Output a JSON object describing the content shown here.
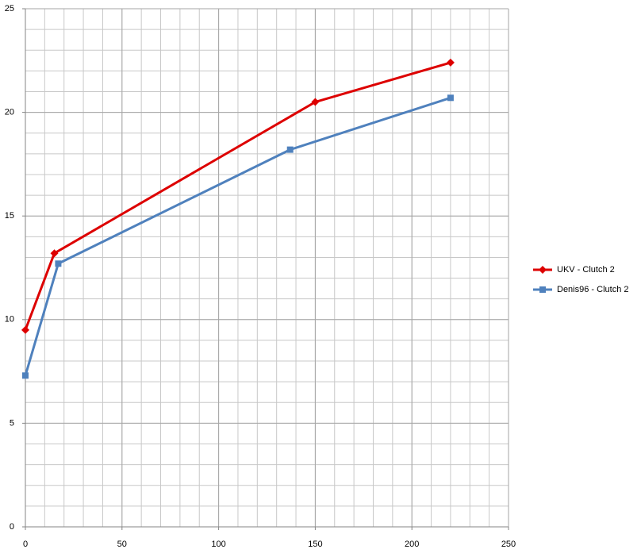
{
  "chart_data": {
    "type": "line",
    "series": [
      {
        "name": "UKV - Clutch 2",
        "color": "#dd0000",
        "marker": "diamond",
        "x": [
          0,
          15,
          150,
          220
        ],
        "values": [
          9.5,
          13.2,
          20.5,
          22.4
        ]
      },
      {
        "name": "Denis96 - Clutch 2",
        "color": "#4f81bd",
        "marker": "square",
        "x": [
          0,
          17,
          137,
          220
        ],
        "values": [
          7.3,
          12.7,
          18.2,
          20.7
        ]
      }
    ],
    "xlim": [
      0,
      250
    ],
    "xticks": [
      0,
      50,
      100,
      150,
      200,
      250
    ],
    "ylim": [
      0,
      25
    ],
    "yticks": [
      0,
      5,
      10,
      15,
      20,
      25
    ],
    "grid": true,
    "minor_grid": {
      "x": 10,
      "y": 1
    },
    "legend": "right"
  }
}
